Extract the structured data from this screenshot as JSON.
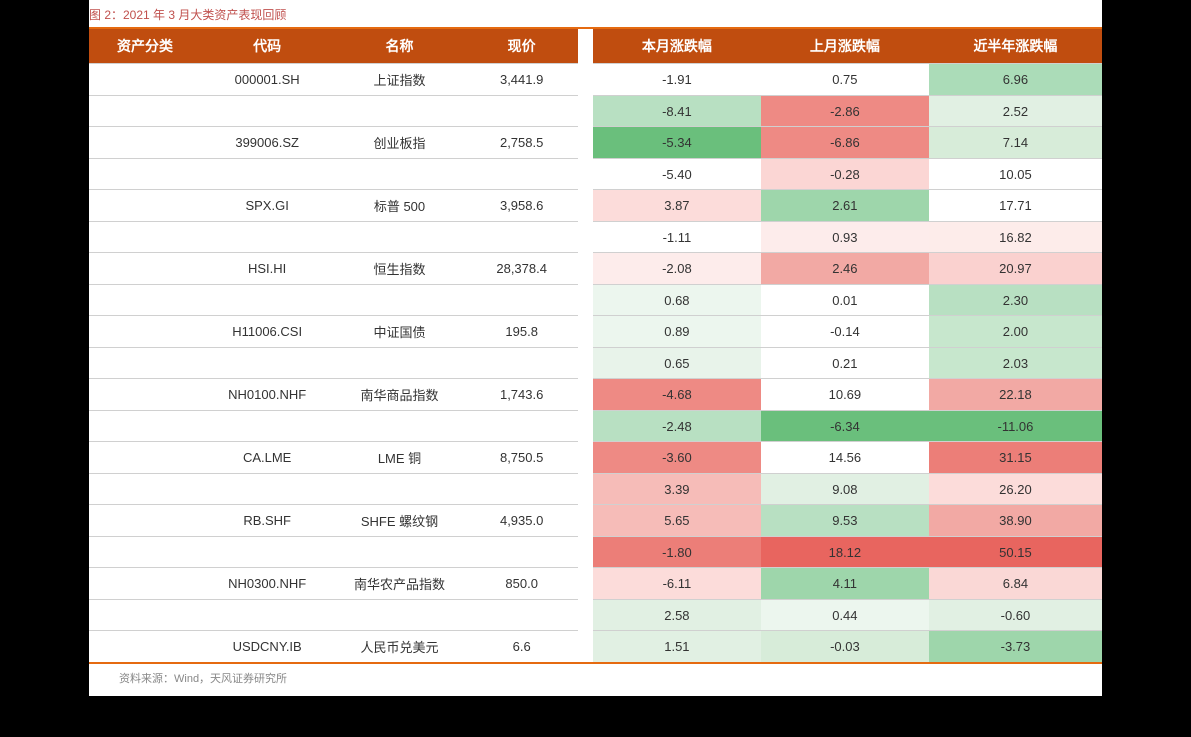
{
  "title": "图 2：2021 年 3 月大类资产表现回顾",
  "source": "资料来源：Wind，天风证券研究所",
  "headers": {
    "category": "资产分类",
    "code": "代码",
    "name": "名称",
    "price": "现价",
    "month_change": "本月涨跌幅",
    "last_month_change": "上月涨跌幅",
    "half_year_change": "近半年涨跌幅"
  },
  "colors": {
    "header_bg": "#c04d0f",
    "border_orange": "#e56a10",
    "title_color": "#c0504d",
    "source_color": "#888888",
    "cell_border": "#d0d0d0"
  },
  "rows": [
    {
      "code": "000001.SH",
      "name": "上证指数",
      "price": "3,441.9",
      "m1": {
        "value": "-1.91",
        "bg": "#ffffff"
      },
      "m2": {
        "value": "0.75",
        "bg": "#ffffff"
      },
      "m3": {
        "value": "6.96",
        "bg": "#abdcb8"
      }
    },
    {
      "code": "",
      "name": "",
      "price": "",
      "m1": {
        "value": "-8.41",
        "bg": "#b8e0c2"
      },
      "m2": {
        "value": "-2.86",
        "bg": "#ee8a84"
      },
      "m3": {
        "value": "2.52",
        "bg": "#e1f0e3"
      }
    },
    {
      "code": "399006.SZ",
      "name": "创业板指",
      "price": "2,758.5",
      "m1": {
        "value": "-5.34",
        "bg": "#6abf7c"
      },
      "m2": {
        "value": "-6.86",
        "bg": "#ee8a84"
      },
      "m3": {
        "value": "7.14",
        "bg": "#d7ecd9"
      }
    },
    {
      "code": "",
      "name": "",
      "price": "",
      "m1": {
        "value": "-5.40",
        "bg": "#ffffff"
      },
      "m2": {
        "value": "-0.28",
        "bg": "#fbd6d4"
      },
      "m3": {
        "value": "10.05",
        "bg": "#ffffff"
      }
    },
    {
      "code": "SPX.GI",
      "name": "标普 500",
      "price": "3,958.6",
      "m1": {
        "value": "3.87",
        "bg": "#fcdcda"
      },
      "m2": {
        "value": "2.61",
        "bg": "#9ed6ab"
      },
      "m3": {
        "value": "17.71",
        "bg": "#ffffff"
      }
    },
    {
      "code": "",
      "name": "",
      "price": "",
      "m1": {
        "value": "-1.11",
        "bg": "#ffffff"
      },
      "m2": {
        "value": "0.93",
        "bg": "#fdeceb"
      },
      "m3": {
        "value": "16.82",
        "bg": "#fdecea"
      }
    },
    {
      "code": "HSI.HI",
      "name": "恒生指数",
      "price": "28,378.4",
      "m1": {
        "value": "-2.08",
        "bg": "#fdeceb"
      },
      "m2": {
        "value": "2.46",
        "bg": "#f2a9a4"
      },
      "m3": {
        "value": "20.97",
        "bg": "#fad1cf"
      }
    },
    {
      "code": "",
      "name": "",
      "price": "",
      "m1": {
        "value": "0.68",
        "bg": "#ecf6ee"
      },
      "m2": {
        "value": "0.01",
        "bg": "#ffffff"
      },
      "m3": {
        "value": "2.30",
        "bg": "#b8e0c2"
      }
    },
    {
      "code": "H11006.CSI",
      "name": "中证国债",
      "price": "195.8",
      "m1": {
        "value": "0.89",
        "bg": "#ecf6ee"
      },
      "m2": {
        "value": "-0.14",
        "bg": "#ffffff"
      },
      "m3": {
        "value": "2.00",
        "bg": "#c7e7cd"
      }
    },
    {
      "code": "",
      "name": "",
      "price": "",
      "m1": {
        "value": "0.65",
        "bg": "#e8f3ea"
      },
      "m2": {
        "value": "0.21",
        "bg": "#ffffff"
      },
      "m3": {
        "value": "2.03",
        "bg": "#c7e7cd"
      }
    },
    {
      "code": "NH0100.NHF",
      "name": "南华商品指数",
      "price": "1,743.6",
      "m1": {
        "value": "-4.68",
        "bg": "#ee8a84"
      },
      "m2": {
        "value": "10.69",
        "bg": "#ffffff"
      },
      "m3": {
        "value": "22.18",
        "bg": "#f2a9a4"
      }
    },
    {
      "code": "",
      "name": "",
      "price": "",
      "m1": {
        "value": "-2.48",
        "bg": "#b8e0c2"
      },
      "m2": {
        "value": "-6.34",
        "bg": "#6abf7c"
      },
      "m3": {
        "value": "-11.06",
        "bg": "#6abf7c"
      }
    },
    {
      "code": "CA.LME",
      "name": "LME 铜",
      "price": "8,750.5",
      "m1": {
        "value": "-3.60",
        "bg": "#ee8a84"
      },
      "m2": {
        "value": "14.56",
        "bg": "#ffffff"
      },
      "m3": {
        "value": "31.15",
        "bg": "#ec7e78"
      }
    },
    {
      "code": "",
      "name": "",
      "price": "",
      "m1": {
        "value": "3.39",
        "bg": "#f6bcb8"
      },
      "m2": {
        "value": "9.08",
        "bg": "#e1f0e3"
      },
      "m3": {
        "value": "26.20",
        "bg": "#fcdcda"
      }
    },
    {
      "code": "RB.SHF",
      "name": "SHFE 螺纹钢",
      "price": "4,935.0",
      "m1": {
        "value": "5.65",
        "bg": "#f6bcb8"
      },
      "m2": {
        "value": "9.53",
        "bg": "#b8e0c2"
      },
      "m3": {
        "value": "38.90",
        "bg": "#f2a9a4"
      }
    },
    {
      "code": "",
      "name": "",
      "price": "",
      "m1": {
        "value": "-1.80",
        "bg": "#ec7e78"
      },
      "m2": {
        "value": "18.12",
        "bg": "#e8655f"
      },
      "m3": {
        "value": "50.15",
        "bg": "#e8655f"
      }
    },
    {
      "code": "NH0300.NHF",
      "name": "南华农产品指数",
      "price": "850.0",
      "m1": {
        "value": "-6.11",
        "bg": "#fcdcda"
      },
      "m2": {
        "value": "4.11",
        "bg": "#9ed6ab"
      },
      "m3": {
        "value": "6.84",
        "bg": "#fad8d6"
      }
    },
    {
      "code": "",
      "name": "",
      "price": "",
      "m1": {
        "value": "2.58",
        "bg": "#e1f0e3"
      },
      "m2": {
        "value": "0.44",
        "bg": "#ecf6ee"
      },
      "m3": {
        "value": "-0.60",
        "bg": "#e1f0e3"
      }
    },
    {
      "code": "USDCNY.IB",
      "name": "人民币兑美元",
      "price": "6.6",
      "m1": {
        "value": "1.51",
        "bg": "#e1f0e3"
      },
      "m2": {
        "value": "-0.03",
        "bg": "#d7ecd9"
      },
      "m3": {
        "value": "-3.73",
        "bg": "#9ed6ab"
      }
    }
  ]
}
